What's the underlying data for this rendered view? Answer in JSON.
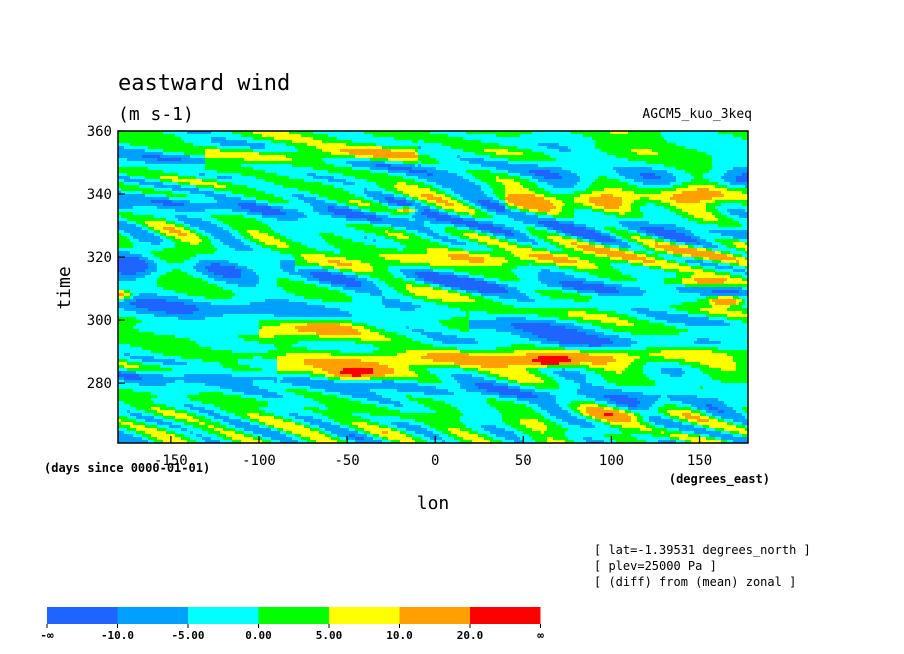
{
  "chart_data": {
    "type": "heatmap",
    "title": "eastward wind",
    "subtitle": "(m s-1)",
    "experiment": "AGCM5_kuo_3keq",
    "xlabel": "lon",
    "ylabel": "time",
    "x_units": "(degrees_east)",
    "y_units": "(days since 0000-01-01)",
    "xlim": [
      -180,
      177.5
    ],
    "ylim": [
      261,
      360
    ],
    "x_ticks": [
      -150,
      -100,
      -50,
      0,
      50,
      100,
      150
    ],
    "x_tick_labels": [
      "-150",
      "-100",
      "-50",
      "0",
      "50",
      "100",
      "150"
    ],
    "y_ticks": [
      280,
      300,
      320,
      340,
      360
    ],
    "y_tick_labels": [
      "280",
      "300",
      "320",
      "340",
      "360"
    ],
    "grid": false,
    "annotations": [
      "[ lat=-1.39531 degrees_north ]",
      "[ plev=25000 Pa ]",
      "[ (diff) from (mean) zonal ]"
    ],
    "colorbar": {
      "levels": [
        "-∞",
        "-10.0",
        "-5.00",
        "0.00",
        "5.00",
        "10.0",
        "20.0",
        "∞"
      ],
      "colors": [
        "#1e64ff",
        "#00a0ff",
        "#00ffff",
        "#00ff00",
        "#ffff00",
        "#ffa000",
        "#ff0000"
      ]
    },
    "bands": [
      {
        "t0": 306,
        "t1": 290,
        "lon0": -180,
        "lon1": 177.5,
        "value": -9,
        "width": 4
      },
      {
        "t0": 318,
        "t1": 308,
        "lon0": -180,
        "lon1": 177.5,
        "value": -8,
        "width": 3
      },
      {
        "t0": 338,
        "t1": 326,
        "lon0": -180,
        "lon1": 177.5,
        "value": -8,
        "width": 3
      },
      {
        "t0": 282,
        "t1": 274,
        "lon0": -180,
        "lon1": 177.5,
        "value": -7,
        "width": 3
      },
      {
        "t0": 352,
        "t1": 344,
        "lon0": -180,
        "lon1": 177.5,
        "value": -6,
        "width": 3
      },
      {
        "t0": 284,
        "t1": 290,
        "lon0": -90,
        "lon1": 177.5,
        "value": 11,
        "width": 3
      },
      {
        "t0": 296,
        "t1": 300,
        "lon0": -100,
        "lon1": 20,
        "value": 8,
        "width": 3
      },
      {
        "t0": 316,
        "t1": 322,
        "lon0": -80,
        "lon1": 177.5,
        "value": 8,
        "width": 3
      },
      {
        "t0": 332,
        "t1": 340,
        "lon0": 40,
        "lon1": 177.5,
        "value": 10,
        "width": 3
      },
      {
        "t0": 350,
        "t1": 356,
        "lon0": -130,
        "lon1": -10,
        "value": 9,
        "width": 3
      }
    ],
    "blobs": [
      {
        "lon": 65,
        "t": 287,
        "value": 26,
        "dlon": 12,
        "dt": 1.5
      },
      {
        "lon": -45,
        "t": 283,
        "value": 22,
        "dlon": 15,
        "dt": 2
      },
      {
        "lon": 165,
        "t": 306,
        "value": 24,
        "dlon": 10,
        "dt": 1.5
      },
      {
        "lon": -178,
        "t": 308,
        "value": 20,
        "dlon": 6,
        "dt": 1.5
      },
      {
        "lon": -15,
        "t": 335,
        "value": 21,
        "dlon": 6,
        "dt": 1
      },
      {
        "lon": 150,
        "t": 312,
        "value": 14,
        "dlon": 20,
        "dt": 2
      },
      {
        "lon": -60,
        "t": 298,
        "value": 12,
        "dlon": 20,
        "dt": 2.5
      },
      {
        "lon": 105,
        "t": 270,
        "value": 10,
        "dlon": 25,
        "dt": 2
      }
    ],
    "noise": {
      "seed": 7,
      "amplitude": 9,
      "wave_lon": 9,
      "wave_t": 1.6
    }
  }
}
